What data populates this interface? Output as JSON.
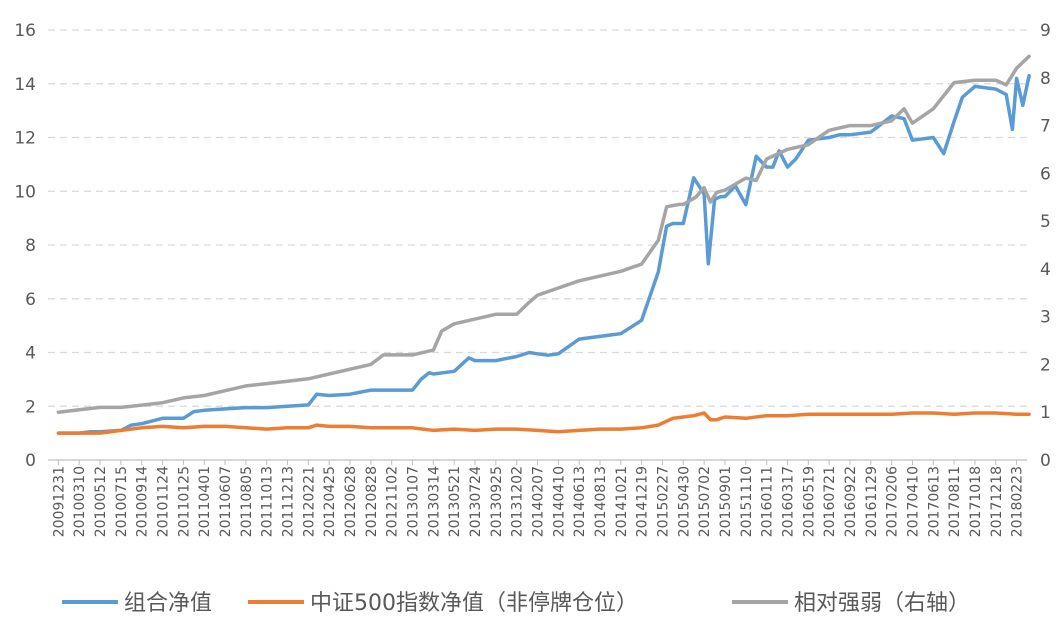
{
  "chart_data": {
    "type": "line",
    "x_tick_labels": [
      "20091231",
      "20100310",
      "20100512",
      "20100715",
      "20100914",
      "20101124",
      "20110125",
      "20110401",
      "20110607",
      "20110805",
      "20111013",
      "20111213",
      "20120221",
      "20120425",
      "20120628",
      "20120828",
      "20121102",
      "20130107",
      "20130314",
      "20130521",
      "20130724",
      "20130925",
      "20131202",
      "20140207",
      "20140410",
      "20140613",
      "20140813",
      "20141021",
      "20141219",
      "20150227",
      "20150430",
      "20150702",
      "20150901",
      "20151110",
      "20160111",
      "20160317",
      "20160519",
      "20160721",
      "20160922",
      "20161129",
      "20170206",
      "20170410",
      "20170613",
      "20170811",
      "20171018",
      "20171218",
      "20180223"
    ],
    "left_axis": {
      "ylim": [
        0,
        16
      ],
      "ticks": [
        0,
        2,
        4,
        6,
        8,
        10,
        12,
        14,
        16
      ]
    },
    "right_axis": {
      "ylim": [
        0,
        9
      ],
      "ticks": [
        0,
        1,
        2,
        3,
        4,
        5,
        6,
        7,
        8,
        9
      ]
    },
    "grid": "horizontal-dashed",
    "legend_position": "bottom",
    "series": [
      {
        "name": "组合净值",
        "axis": "left",
        "color": "#5b9bd5",
        "x": [
          0,
          1,
          1.5,
          2,
          3,
          3.5,
          4,
          5,
          6,
          6.5,
          7,
          8,
          9,
          10,
          11,
          12,
          12.4,
          13,
          14,
          15,
          16,
          17,
          17.4,
          17.8,
          18,
          19,
          19.7,
          20,
          21,
          22,
          22.6,
          23,
          23.5,
          24,
          25,
          26,
          26.5,
          27,
          28,
          28.8,
          29.2,
          29.5,
          30,
          30.5,
          31,
          31.2,
          31.5,
          31.8,
          32,
          32.5,
          33,
          33.5,
          34,
          34.3,
          34.6,
          35,
          35.4,
          36,
          37,
          37.5,
          38,
          39,
          40,
          40.6,
          41,
          42,
          42.5,
          43,
          43.4,
          44,
          45,
          45.5,
          45.8,
          46,
          46.3,
          46.6
        ],
        "y": [
          1.0,
          1.0,
          1.05,
          1.05,
          1.1,
          1.3,
          1.35,
          1.55,
          1.55,
          1.8,
          1.85,
          1.9,
          1.95,
          1.95,
          2.0,
          2.05,
          2.45,
          2.4,
          2.45,
          2.6,
          2.6,
          2.6,
          3.0,
          3.25,
          3.2,
          3.3,
          3.8,
          3.7,
          3.7,
          3.85,
          4.0,
          3.95,
          3.9,
          3.95,
          4.5,
          4.6,
          4.65,
          4.7,
          5.2,
          7.0,
          8.7,
          8.8,
          8.8,
          10.5,
          9.9,
          7.3,
          9.7,
          9.8,
          9.8,
          10.2,
          9.5,
          11.3,
          10.9,
          10.9,
          11.5,
          10.9,
          11.2,
          11.9,
          12.0,
          12.1,
          12.1,
          12.2,
          12.8,
          12.7,
          11.9,
          12.0,
          11.4,
          12.6,
          13.5,
          13.9,
          13.8,
          13.6,
          12.3,
          14.2,
          13.2,
          14.3
        ]
      },
      {
        "name": "中证500指数净值（非停牌仓位）",
        "axis": "left",
        "color": "#ed7d31",
        "x": [
          0,
          1,
          2,
          3,
          4,
          5,
          6,
          7,
          8,
          9,
          10,
          11,
          12,
          12.4,
          13,
          14,
          15,
          16,
          17,
          18,
          19,
          20,
          21,
          22,
          23,
          24,
          25,
          26,
          27,
          28,
          28.8,
          29.5,
          30,
          30.5,
          31,
          31.3,
          31.6,
          32,
          33,
          34,
          35,
          36,
          37,
          38,
          39,
          40,
          41,
          42,
          43,
          44,
          45,
          46,
          46.6
        ],
        "y": [
          1.0,
          1.0,
          1.0,
          1.1,
          1.2,
          1.25,
          1.2,
          1.25,
          1.25,
          1.2,
          1.15,
          1.2,
          1.2,
          1.3,
          1.25,
          1.25,
          1.2,
          1.2,
          1.2,
          1.1,
          1.15,
          1.1,
          1.15,
          1.15,
          1.1,
          1.05,
          1.1,
          1.15,
          1.15,
          1.2,
          1.3,
          1.55,
          1.6,
          1.65,
          1.75,
          1.5,
          1.5,
          1.6,
          1.55,
          1.65,
          1.65,
          1.7,
          1.7,
          1.7,
          1.7,
          1.7,
          1.75,
          1.75,
          1.7,
          1.75,
          1.75,
          1.7,
          1.7
        ]
      },
      {
        "name": "相对强弱（右轴）",
        "axis": "right",
        "color": "#a5a5a5",
        "x": [
          0,
          1,
          2,
          3,
          4,
          5,
          6,
          7,
          8,
          9,
          10,
          11,
          12,
          13,
          14,
          15,
          15.6,
          16,
          17,
          18,
          18.4,
          19,
          20,
          21,
          22,
          22.6,
          23,
          24,
          25,
          26,
          27,
          28,
          28.8,
          29.2,
          29.8,
          30,
          30.6,
          31,
          31.3,
          31.6,
          32,
          33,
          33.5,
          34,
          35,
          36,
          36.5,
          37,
          38,
          39,
          40,
          40.6,
          41,
          42,
          43,
          44,
          45,
          45.5,
          46,
          46.6
        ],
        "y": [
          1.0,
          1.05,
          1.1,
          1.1,
          1.15,
          1.2,
          1.3,
          1.35,
          1.45,
          1.55,
          1.6,
          1.65,
          1.7,
          1.8,
          1.9,
          2.0,
          2.2,
          2.2,
          2.2,
          2.3,
          2.7,
          2.85,
          2.95,
          3.05,
          3.05,
          3.3,
          3.45,
          3.6,
          3.75,
          3.85,
          3.95,
          4.1,
          4.6,
          5.3,
          5.35,
          5.35,
          5.5,
          5.7,
          5.4,
          5.6,
          5.65,
          5.9,
          5.85,
          6.3,
          6.5,
          6.6,
          6.75,
          6.9,
          7.0,
          7.0,
          7.1,
          7.35,
          7.05,
          7.35,
          7.9,
          7.95,
          7.95,
          7.85,
          8.2,
          8.45
        ]
      }
    ]
  }
}
